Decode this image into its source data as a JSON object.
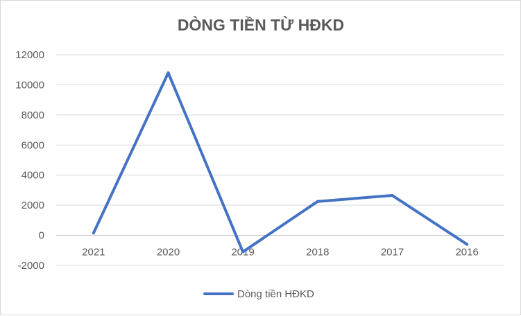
{
  "chart_data": {
    "type": "line",
    "title": "DÒNG TIỀN TỪ HĐKD",
    "xlabel": "",
    "ylabel": "",
    "categories": [
      "2021",
      "2020",
      "2019",
      "2018",
      "2017",
      "2016"
    ],
    "yticks": [
      "-2000",
      "0",
      "2000",
      "4000",
      "6000",
      "8000",
      "10000",
      "12000"
    ],
    "ylim": [
      -2000,
      12000
    ],
    "grid": true,
    "legend_position": "bottom",
    "series": [
      {
        "name": "Dòng tiền HĐKD",
        "color": "#4472c4",
        "values": [
          150,
          10800,
          -1100,
          2250,
          2650,
          -600
        ]
      }
    ]
  }
}
